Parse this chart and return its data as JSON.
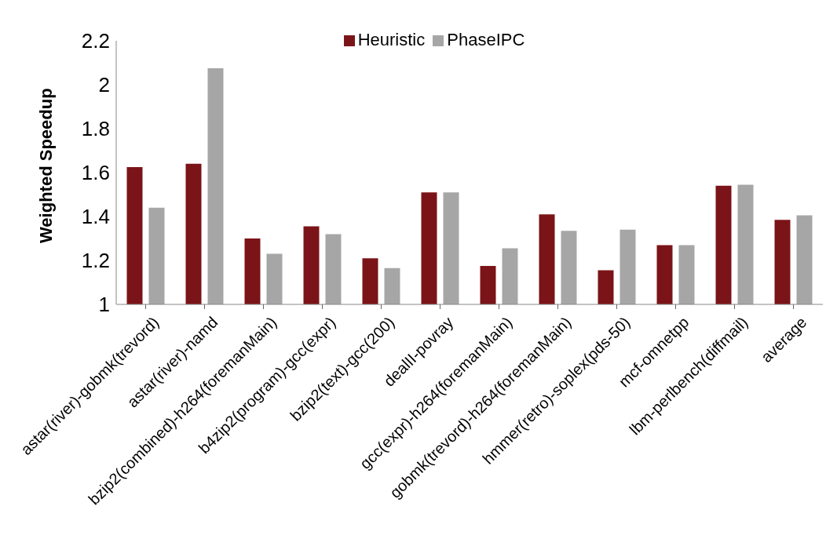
{
  "chart_data": {
    "type": "bar",
    "ylabel": "Weighted Speedup",
    "categories": [
      "astar(river)-gobmk(trevord)",
      "astar(river)-namd",
      "bzip2(combined)-h264(foremanMain)",
      "b4zip2(program)-gcc(expr)",
      "bzip2(text)-gcc(200)",
      "dealII-povray",
      "gcc(expr)-h264(foremanMain)",
      "gobmk(trevord)-h264(foremanMain)",
      "hmmer(retro)-soplex(pds-50)",
      "mcf-omnetpp",
      "lbm-perlbench(diffmail)",
      "average"
    ],
    "series": [
      {
        "name": "Heuristic",
        "color": "#7b1418",
        "values": [
          1.625,
          1.64,
          1.3,
          1.355,
          1.21,
          1.51,
          1.175,
          1.41,
          1.155,
          1.27,
          1.54,
          1.385
        ]
      },
      {
        "name": "PhaseIPC",
        "color": "#a6a6a6",
        "values": [
          1.44,
          2.075,
          1.23,
          1.32,
          1.165,
          1.51,
          1.255,
          1.335,
          1.34,
          1.27,
          1.545,
          1.405
        ]
      }
    ],
    "ylim": [
      1,
      2.2
    ],
    "yticks": [
      1,
      1.2,
      1.4,
      1.6,
      1.8,
      2,
      2.2
    ],
    "grid": false,
    "legend": "top"
  }
}
